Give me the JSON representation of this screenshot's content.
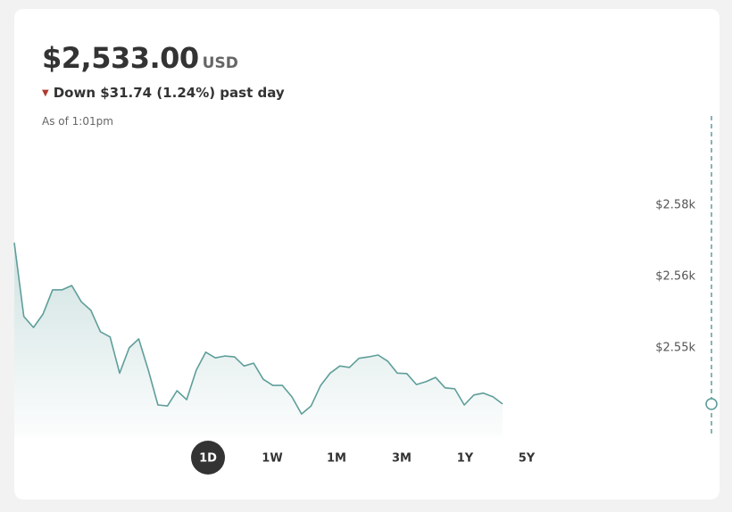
{
  "header": {
    "price": "$2,533.00",
    "currency": "USD",
    "change": "Down $31.74 (1.24%) past day",
    "as_of": "As of 1:01pm"
  },
  "chart_data": {
    "type": "line",
    "color": "#5e9e9a",
    "values": [
      2569.6,
      2554.1,
      2551.8,
      2554.6,
      2559.7,
      2559.7,
      2560.6,
      2557.2,
      2555.4,
      2550.9,
      2549.8,
      2542.2,
      2547.5,
      2549.4,
      2542.8,
      2535.5,
      2535.3,
      2538.5,
      2536.6,
      2542.8,
      2546.6,
      2545.4,
      2545.8,
      2545.6,
      2543.7,
      2544.3,
      2540.9,
      2539.6,
      2539.6,
      2537.2,
      2533.6,
      2535.3,
      2539.6,
      2542.2,
      2543.7,
      2543.4,
      2545.3,
      2545.6,
      2546.0,
      2544.7,
      2542.2,
      2542.1,
      2539.8,
      2540.4,
      2541.3,
      2539.1,
      2538.9,
      2535.5,
      2537.6,
      2538.0,
      2537.2,
      2535.7
    ],
    "ylim": [
      2528.75,
      2596.25
    ],
    "yticks": [
      {
        "value": 2577.5,
        "label": "$2.58k"
      },
      {
        "value": 2562.5,
        "label": "$2.56k"
      },
      {
        "value": 2547.5,
        "label": "$2.55k"
      }
    ]
  },
  "ranges": [
    "1D",
    "1W",
    "1M",
    "3M",
    "1Y",
    "5Y"
  ]
}
